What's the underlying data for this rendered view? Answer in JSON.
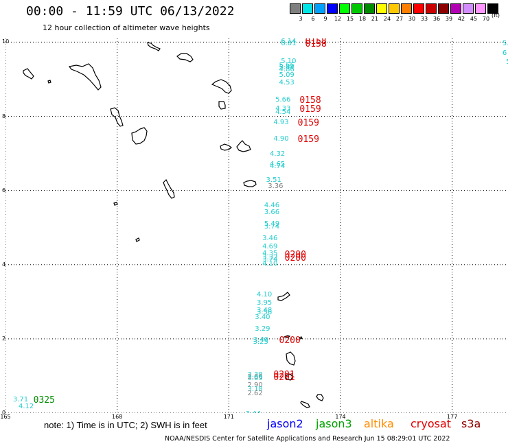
{
  "header": {
    "title": "00:00 - 11:59 UTC 06/13/2022",
    "subtitle": "12 hour collection of altimeter wave heights"
  },
  "scale": {
    "unit": "(ft)",
    "bins": [
      {
        "label": "3",
        "color": "#7f7f7f"
      },
      {
        "label": "6",
        "color": "#00e6e6"
      },
      {
        "label": "9",
        "color": "#00a0ff"
      },
      {
        "label": "12",
        "color": "#0000ff"
      },
      {
        "label": "15",
        "color": "#00ff00"
      },
      {
        "label": "18",
        "color": "#00c800"
      },
      {
        "label": "21",
        "color": "#008c00"
      },
      {
        "label": "24",
        "color": "#ffff00"
      },
      {
        "label": "27",
        "color": "#ffc800"
      },
      {
        "label": "30",
        "color": "#ff7f00"
      },
      {
        "label": "33",
        "color": "#ff0000"
      },
      {
        "label": "36",
        "color": "#c80000"
      },
      {
        "label": "39",
        "color": "#8c0000"
      },
      {
        "label": "42",
        "color": "#b400b4"
      },
      {
        "label": "45",
        "color": "#d28cff"
      },
      {
        "label": "70",
        "color": "#ff96ff"
      },
      {
        "label": "",
        "color": "#000000"
      }
    ]
  },
  "map": {
    "lon_ticks": [
      "165",
      "168",
      "171",
      "174",
      "177"
    ],
    "lat_ticks": [
      "0",
      "2",
      "4",
      "6",
      "8",
      "10"
    ],
    "lon_range": [
      165,
      178.5
    ],
    "lat_range": [
      0,
      10.1
    ],
    "colors": {
      "swh": "#22cccc",
      "swh_gray": "#7f7f7f",
      "cryosat_time": "#e00000",
      "jason3_time": "#008c00"
    },
    "swh_values": [
      {
        "v": "6.14",
        "lon": 172.4,
        "lat": 10.0,
        "c": "swh"
      },
      {
        "v": "6.01",
        "lon": 172.4,
        "lat": 9.95,
        "c": "swh"
      },
      {
        "v": "5.10",
        "lon": 172.4,
        "lat": 9.48,
        "c": "swh"
      },
      {
        "v": "5.66",
        "lon": 172.35,
        "lat": 9.36,
        "c": "swh"
      },
      {
        "v": "5.44",
        "lon": 172.35,
        "lat": 9.3,
        "c": "swh"
      },
      {
        "v": "4.86",
        "lon": 172.35,
        "lat": 9.24,
        "c": "swh"
      },
      {
        "v": "5.09",
        "lon": 172.35,
        "lat": 9.1,
        "c": "swh"
      },
      {
        "v": "4.53",
        "lon": 172.35,
        "lat": 8.9,
        "c": "swh"
      },
      {
        "v": "5.66",
        "lon": 172.25,
        "lat": 8.44,
        "c": "swh"
      },
      {
        "v": "4.33",
        "lon": 172.25,
        "lat": 8.2,
        "c": "swh"
      },
      {
        "v": "4.54",
        "lon": 172.25,
        "lat": 8.1,
        "c": "swh"
      },
      {
        "v": "4.93",
        "lon": 172.2,
        "lat": 7.82,
        "c": "swh"
      },
      {
        "v": "4.90",
        "lon": 172.2,
        "lat": 7.38,
        "c": "swh"
      },
      {
        "v": "4.32",
        "lon": 172.1,
        "lat": 6.98,
        "c": "swh"
      },
      {
        "v": "4.65",
        "lon": 172.1,
        "lat": 6.7,
        "c": "swh"
      },
      {
        "v": "4.74",
        "lon": 172.1,
        "lat": 6.64,
        "c": "swh"
      },
      {
        "v": "3.51",
        "lon": 172.0,
        "lat": 6.28,
        "c": "swh"
      },
      {
        "v": "3.36",
        "lon": 172.05,
        "lat": 6.1,
        "c": "swh_gray"
      },
      {
        "v": "4.46",
        "lon": 171.95,
        "lat": 5.58,
        "c": "swh"
      },
      {
        "v": "3.66",
        "lon": 171.95,
        "lat": 5.4,
        "c": "swh"
      },
      {
        "v": "5.49",
        "lon": 171.95,
        "lat": 5.08,
        "c": "swh"
      },
      {
        "v": "3.74",
        "lon": 171.95,
        "lat": 5.02,
        "c": "swh"
      },
      {
        "v": "3.46",
        "lon": 171.9,
        "lat": 4.7,
        "c": "swh"
      },
      {
        "v": "4.69",
        "lon": 171.9,
        "lat": 4.48,
        "c": "swh"
      },
      {
        "v": "4.35",
        "lon": 171.9,
        "lat": 4.3,
        "c": "swh"
      },
      {
        "v": "3.32",
        "lon": 171.9,
        "lat": 4.18,
        "c": "swh"
      },
      {
        "v": "3.74",
        "lon": 171.9,
        "lat": 4.12,
        "c": "swh"
      },
      {
        "v": "4.10",
        "lon": 171.9,
        "lat": 4.02,
        "c": "swh"
      },
      {
        "v": "4.10",
        "lon": 171.75,
        "lat": 3.18,
        "c": "swh"
      },
      {
        "v": "3.95",
        "lon": 171.75,
        "lat": 2.96,
        "c": "swh"
      },
      {
        "v": "3.48",
        "lon": 171.75,
        "lat": 2.76,
        "c": "swh"
      },
      {
        "v": "3.56",
        "lon": 171.75,
        "lat": 2.7,
        "c": "swh"
      },
      {
        "v": "3.40",
        "lon": 171.7,
        "lat": 2.58,
        "c": "swh"
      },
      {
        "v": "3.29",
        "lon": 171.7,
        "lat": 2.26,
        "c": "swh"
      },
      {
        "v": "3.40",
        "lon": 171.65,
        "lat": 1.96,
        "c": "swh"
      },
      {
        "v": "3.25",
        "lon": 171.65,
        "lat": 1.9,
        "c": "swh"
      },
      {
        "v": "3.38",
        "lon": 171.5,
        "lat": 1.02,
        "c": "swh"
      },
      {
        "v": "2.66",
        "lon": 171.5,
        "lat": 0.96,
        "c": "swh_gray"
      },
      {
        "v": "3.09",
        "lon": 171.5,
        "lat": 0.92,
        "c": "swh"
      },
      {
        "v": "2.90",
        "lon": 171.5,
        "lat": 0.74,
        "c": "swh_gray"
      },
      {
        "v": "3.18",
        "lon": 171.5,
        "lat": 0.62,
        "c": "swh"
      },
      {
        "v": "2.62",
        "lon": 171.5,
        "lat": 0.52,
        "c": "swh_gray"
      },
      {
        "v": "3.44",
        "lon": 171.45,
        "lat": -0.03,
        "c": "swh"
      },
      {
        "v": "3.71",
        "lon": 165.2,
        "lat": 0.35,
        "c": "swh"
      },
      {
        "v": "4.12",
        "lon": 165.35,
        "lat": 0.17,
        "c": "swh"
      },
      {
        "v": "5.",
        "lon": 178.35,
        "lat": 9.95,
        "c": "swh"
      },
      {
        "v": "6",
        "lon": 178.35,
        "lat": 9.7,
        "c": "swh"
      },
      {
        "v": "5",
        "lon": 178.45,
        "lat": 9.45,
        "c": "swh"
      }
    ],
    "time_labels": [
      {
        "t": "0158",
        "lon": 173.05,
        "lat": 10.02,
        "c": "cryosat_time"
      },
      {
        "t": "0158",
        "lon": 173.05,
        "lat": 9.96,
        "c": "cryosat_time"
      },
      {
        "t": "0158",
        "lon": 172.9,
        "lat": 8.44,
        "c": "cryosat_time"
      },
      {
        "t": "0159",
        "lon": 172.9,
        "lat": 8.2,
        "c": "cryosat_time"
      },
      {
        "t": "0159",
        "lon": 172.85,
        "lat": 7.82,
        "c": "cryosat_time"
      },
      {
        "t": "0159",
        "lon": 172.85,
        "lat": 7.38,
        "c": "cryosat_time"
      },
      {
        "t": "0200",
        "lon": 172.5,
        "lat": 4.28,
        "c": "cryosat_time"
      },
      {
        "t": "0200",
        "lon": 172.5,
        "lat": 4.18,
        "c": "cryosat_time"
      },
      {
        "t": "0200",
        "lon": 172.35,
        "lat": 1.96,
        "c": "cryosat_time"
      },
      {
        "t": "0201",
        "lon": 172.2,
        "lat": 1.04,
        "c": "cryosat_time"
      },
      {
        "t": "0201",
        "lon": 172.2,
        "lat": 0.96,
        "c": "cryosat_time"
      },
      {
        "t": "0325",
        "lon": 165.75,
        "lat": 0.35,
        "c": "jason3_time"
      }
    ]
  },
  "footer": {
    "note": "note: 1) Time is in UTC; 2) SWH is in feet",
    "satellites": [
      {
        "name": "jason2",
        "color": "#0000ff"
      },
      {
        "name": "jason3",
        "color": "#00a000"
      },
      {
        "name": "altika",
        "color": "#ff8c00"
      },
      {
        "name": "cryosat",
        "color": "#e00000"
      },
      {
        "name": "s3a",
        "color": "#8c0000"
      }
    ],
    "credit": "NOAA/NESDIS Center for Satellite Applications and Research    Jun 15 08:29:01 UTC 2022"
  }
}
